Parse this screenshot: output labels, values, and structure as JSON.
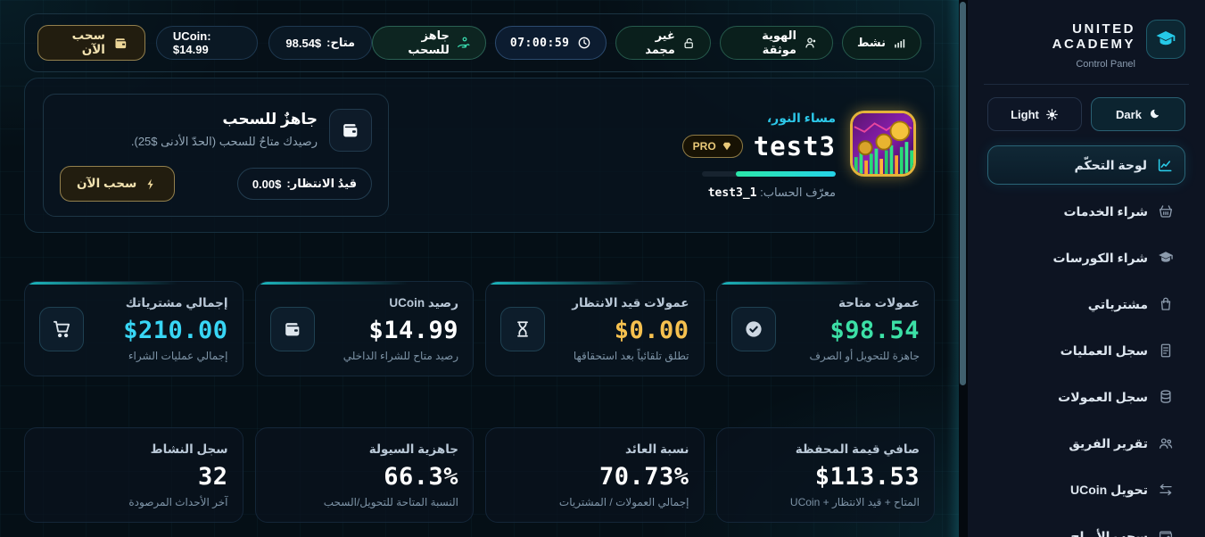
{
  "sidebar": {
    "brand": {
      "title": "UNITED ACADEMY",
      "subtitle": "Control Panel",
      "logo_icon": "graduation-cap-icon"
    },
    "theme": {
      "dark_label": "Dark",
      "dark_icon": "moon-icon",
      "light_label": "Light",
      "light_icon": "gear-icon"
    },
    "items": [
      {
        "label": "لوحة التحكّم",
        "icon": "chart-line-icon",
        "active": true
      },
      {
        "label": "شراء الخدمات",
        "icon": "basket-icon",
        "active": false
      },
      {
        "label": "شراء الكورسات",
        "icon": "graduation-cap-icon",
        "active": false
      },
      {
        "label": "مشترياتي",
        "icon": "shopping-bag-icon",
        "active": false
      },
      {
        "label": "سجل العمليات",
        "icon": "receipt-list-icon",
        "active": false
      },
      {
        "label": "سجل العمولات",
        "icon": "coins-icon",
        "active": false
      },
      {
        "label": "تقرير الفريق",
        "icon": "team-icon",
        "active": false
      },
      {
        "label": "تحويل UCoin",
        "icon": "transfer-icon",
        "active": false
      },
      {
        "label": "سحب الأرباح",
        "icon": "wallet-icon",
        "active": false
      }
    ],
    "accent_color": "#2bd1ee"
  },
  "topbar": {
    "badges": [
      {
        "label": "نشط",
        "icon": "signal-bars-icon",
        "style": "green"
      },
      {
        "label": "الهوية موثقة",
        "icon": "user-check-icon",
        "style": "green"
      },
      {
        "label": "غير مجمد",
        "icon": "unlock-icon",
        "style": "green"
      },
      {
        "label": "07:00:59",
        "icon": "clock-icon",
        "style": "blue"
      },
      {
        "label": "جاهز للسحب",
        "icon": "hand-coins-icon",
        "style": "teal"
      }
    ],
    "available_pill": {
      "label": "متاح:",
      "value": "98.54$"
    },
    "ucoin_pill": {
      "label": "UCoin: $14.99"
    },
    "withdraw_button": {
      "label": "سحب الآن",
      "icon": "wallet-icon"
    }
  },
  "hero": {
    "greeting": "مساء النور،",
    "username": "test3",
    "pro_badge": "PRO",
    "pro_icon": "gem-icon",
    "progress_percent": 75,
    "account_id_label": "معرّف الحساب:",
    "account_id": "test3_1",
    "avatar": "crypto-coins-artwork",
    "withdraw_panel": {
      "icon": "wallet-icon",
      "title": "جاهزٌ للسحب",
      "description": "رصيدك متاحٌ للسحب (الحدّ الأدنى $25).",
      "pending_label": "قيدُ الانتظار:",
      "pending_value": "0.00$",
      "button_label": "سحب الآن",
      "button_icon": "lightning-bolt-icon"
    }
  },
  "stats_primary": [
    {
      "label": "عمولات متاحة",
      "value": "$98.54",
      "sub": "جاهزة للتحويل أو الصرف",
      "icon": "check-circle-icon",
      "color": "#3ce0a6"
    },
    {
      "label": "عمولات قيد الانتظار",
      "value": "$0.00",
      "sub": "تطلق تلقائياً بعد استحقاقها",
      "icon": "hourglass-icon",
      "color": "#f6c14f"
    },
    {
      "label": "رصيد UCoin",
      "value": "$14.99",
      "sub": "رصيد متاح للشراء الداخلي",
      "icon": "wallet-icon",
      "color": "#ffffff"
    },
    {
      "label": "إجمالي مشترياتك",
      "value": "$210.00",
      "sub": "إجمالي عمليات الشراء",
      "icon": "cart-icon",
      "color": "#38d6f5"
    }
  ],
  "stats_secondary": [
    {
      "label": "صافي قيمة المحفظة",
      "value": "$113.53",
      "sub": "المتاح + قيد الانتظار + UCoin"
    },
    {
      "label": "نسبة العائد",
      "value": "70.73%",
      "sub": "إجمالي العمولات / المشتريات"
    },
    {
      "label": "جاهزية السيولة",
      "value": "66.3%",
      "sub": "النسبة المتاحة للتحويل/السحب"
    },
    {
      "label": "سجل النشاط",
      "value": "32",
      "sub": "آخر الأحداث المرصودة"
    }
  ]
}
